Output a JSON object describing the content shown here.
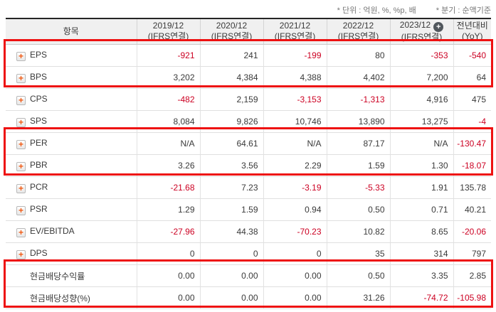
{
  "notes": {
    "unit_note": "* 단위 : 억원, %, %p, 배",
    "basis_note": "* 분기 : 순액기준"
  },
  "icons": {
    "row_expand_glyph": "+",
    "column_expand_glyph": "+"
  },
  "colors": {
    "negative_value": "#cc0022",
    "normal_value": "#3a3a3a",
    "highlight_border": "#ee1111",
    "accent_orange": "#f05a14",
    "header_bg": "#f0f0f0"
  },
  "table": {
    "item_header": "항목",
    "columns": [
      {
        "period": "2019/12",
        "standard": "(IFRS연결)"
      },
      {
        "period": "2020/12",
        "standard": "(IFRS연결)"
      },
      {
        "period": "2021/12",
        "standard": "(IFRS연결)"
      },
      {
        "period": "2022/12",
        "standard": "(IFRS연결)"
      },
      {
        "period": "2023/12",
        "standard": "(IFRS연결)",
        "has_expand_badge": true
      },
      {
        "period": "전년대비",
        "standard": "(YoY)"
      }
    ],
    "rows": [
      {
        "label": "EPS",
        "has_expand_icon": true,
        "values": [
          "-921",
          "241",
          "-199",
          "80",
          "-353",
          "-540"
        ]
      },
      {
        "label": "BPS",
        "has_expand_icon": true,
        "values": [
          "3,202",
          "4,384",
          "4,388",
          "4,402",
          "7,200",
          "64"
        ]
      },
      {
        "label": "CPS",
        "has_expand_icon": true,
        "values": [
          "-482",
          "2,159",
          "-3,153",
          "-1,313",
          "4,916",
          "475"
        ]
      },
      {
        "label": "SPS",
        "has_expand_icon": true,
        "values": [
          "8,084",
          "9,826",
          "10,746",
          "13,890",
          "13,275",
          "-4"
        ]
      },
      {
        "label": "PER",
        "has_expand_icon": true,
        "values": [
          "N/A",
          "64.61",
          "N/A",
          "87.17",
          "N/A",
          "-130.47"
        ]
      },
      {
        "label": "PBR",
        "has_expand_icon": true,
        "values": [
          "3.26",
          "3.56",
          "2.29",
          "1.59",
          "1.30",
          "-18.07"
        ]
      },
      {
        "label": "PCR",
        "has_expand_icon": true,
        "values": [
          "-21.68",
          "7.23",
          "-3.19",
          "-5.33",
          "1.91",
          "135.78"
        ]
      },
      {
        "label": "PSR",
        "has_expand_icon": true,
        "values": [
          "1.29",
          "1.59",
          "0.94",
          "0.50",
          "0.71",
          "40.21"
        ]
      },
      {
        "label": "EV/EBITDA",
        "has_expand_icon": true,
        "values": [
          "-27.96",
          "44.38",
          "-70.23",
          "10.82",
          "8.65",
          "-20.06"
        ]
      },
      {
        "label": "DPS",
        "has_expand_icon": true,
        "values": [
          "0",
          "0",
          "0",
          "35",
          "314",
          "797"
        ]
      },
      {
        "label": "현금배당수익률",
        "has_expand_icon": false,
        "values": [
          "0.00",
          "0.00",
          "0.00",
          "0.50",
          "3.35",
          "2.85"
        ]
      },
      {
        "label": "현금배당성향(%)",
        "has_expand_icon": false,
        "values": [
          "0.00",
          "0.00",
          "0.00",
          "31.26",
          "-74.72",
          "-105.98"
        ]
      }
    ],
    "highlight_groups": [
      [
        0,
        1
      ],
      [
        4,
        5
      ],
      [
        10,
        11
      ]
    ]
  }
}
